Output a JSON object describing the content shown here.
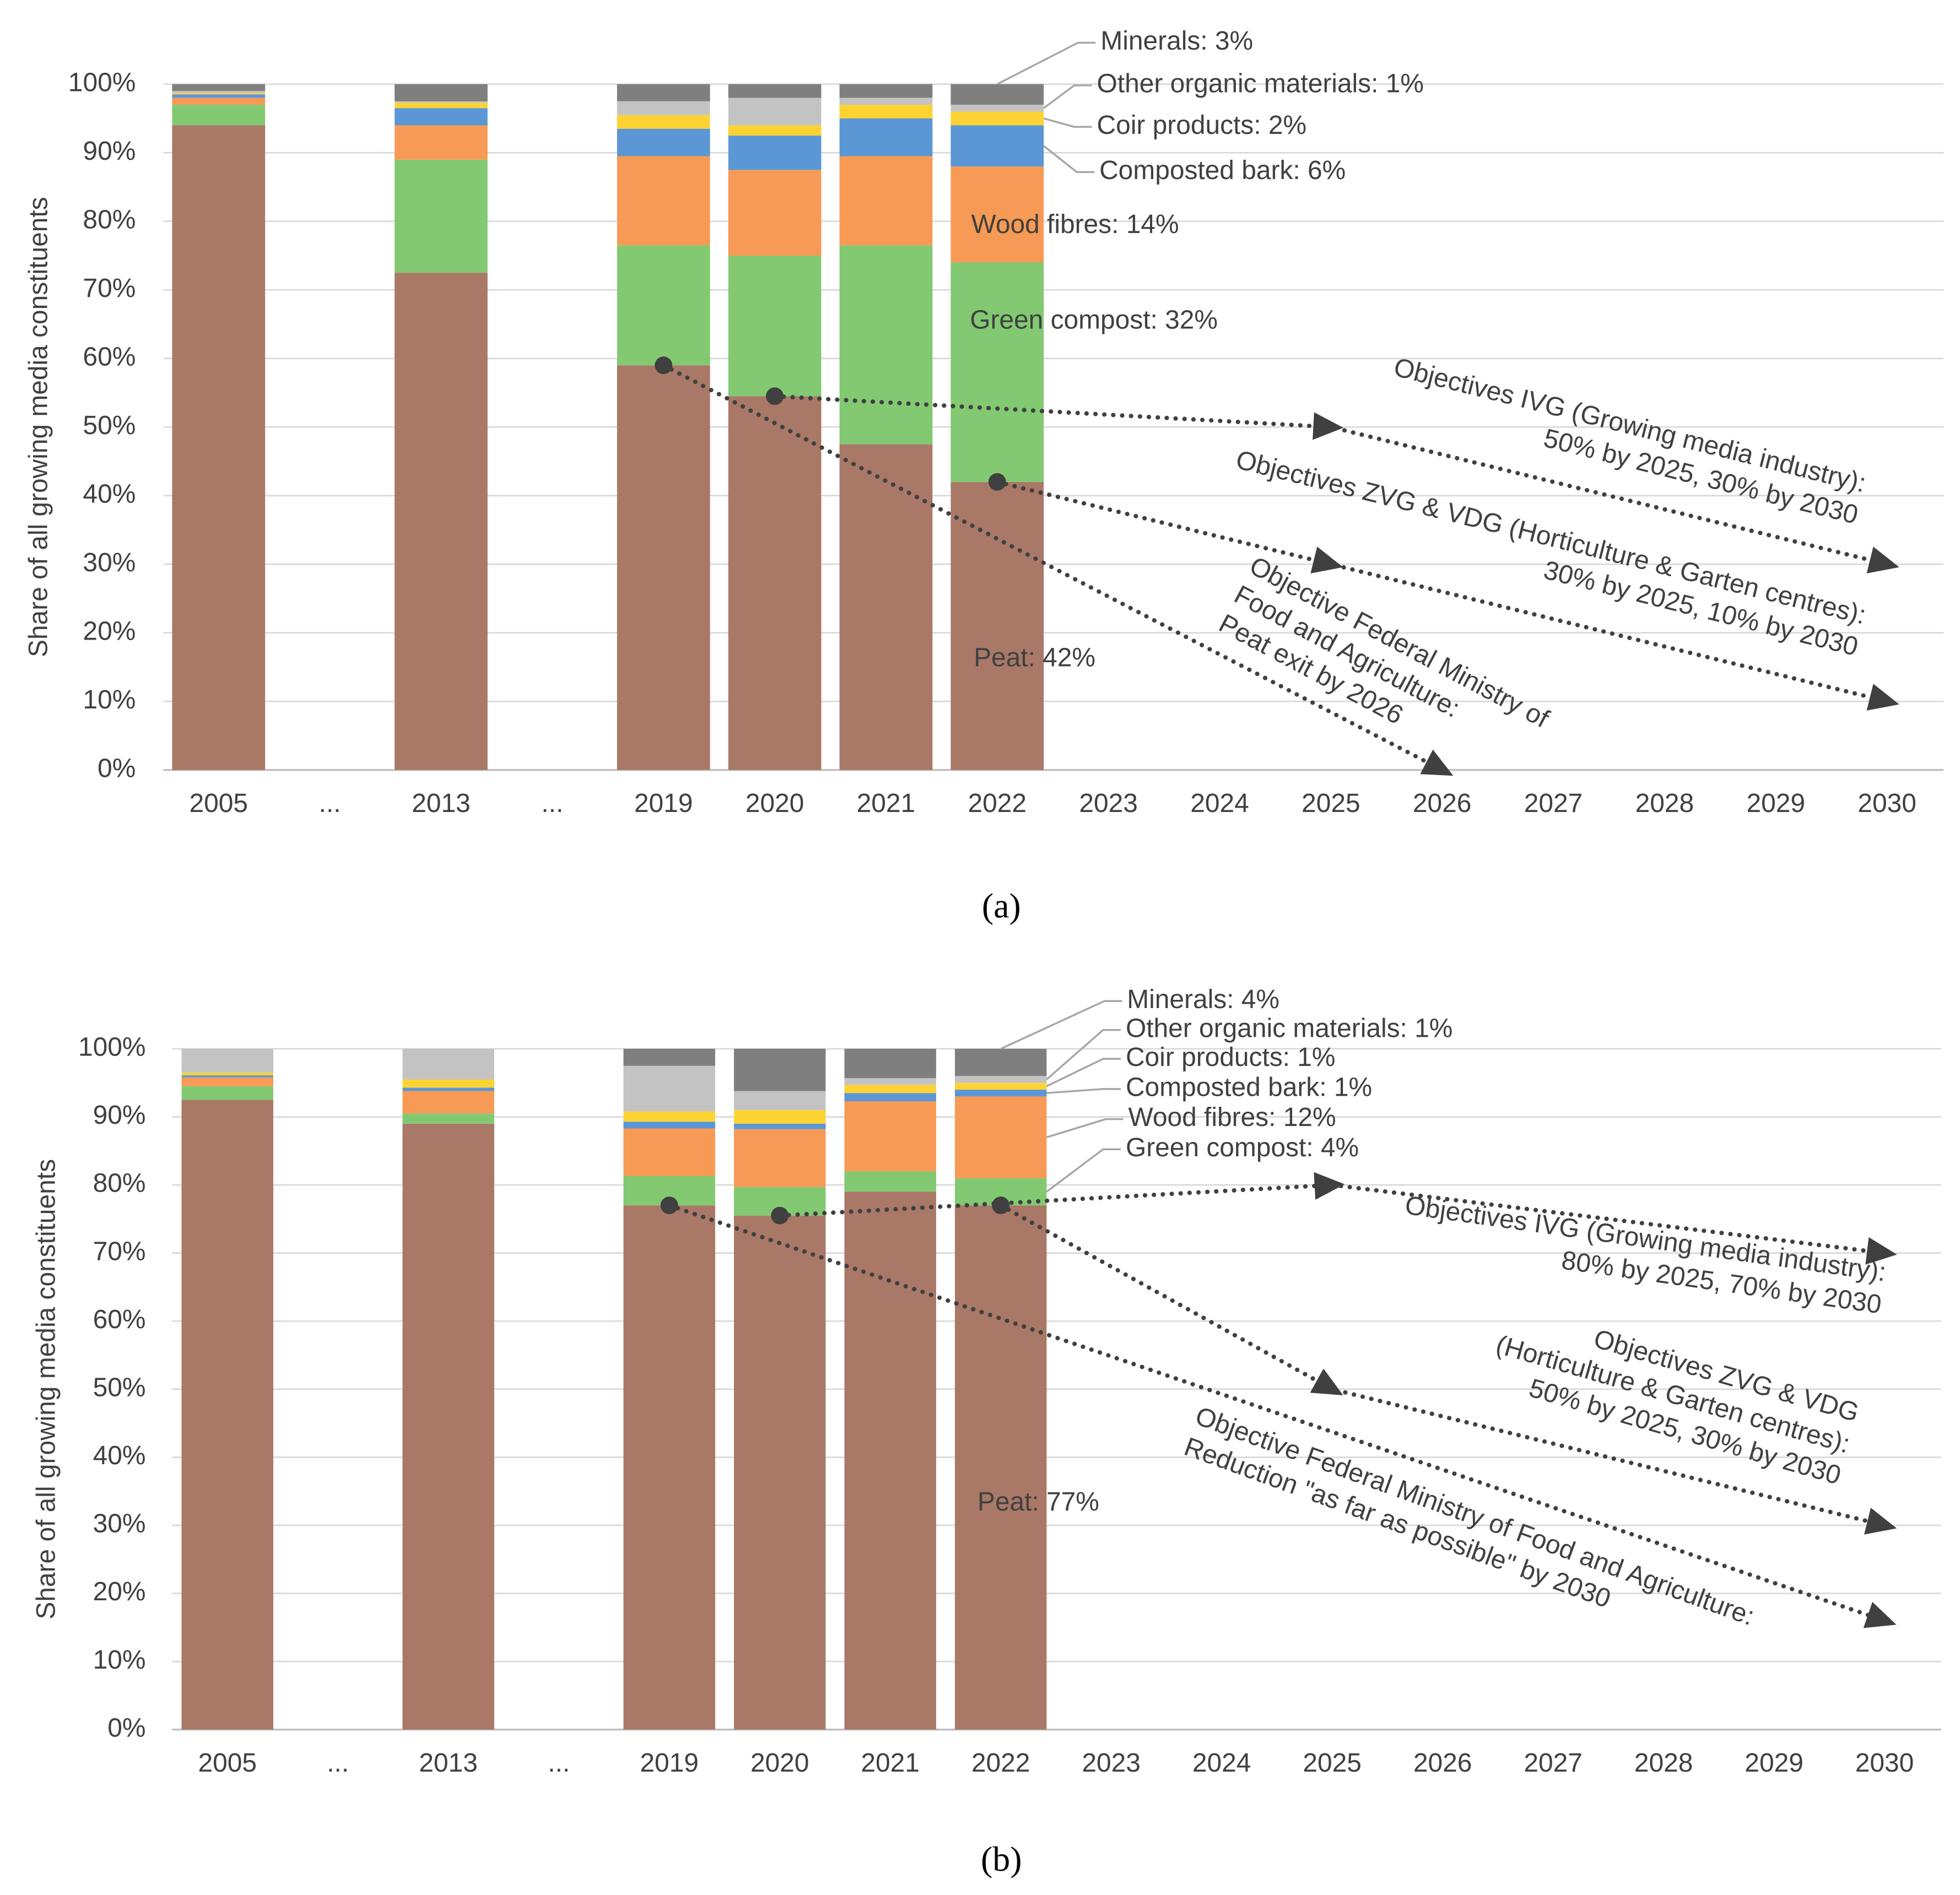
{
  "chart_data": [
    {
      "type": "bar",
      "stacked": true,
      "caption": "(a)",
      "ylabel": "Share of all growing media constituents",
      "categories": [
        "2005",
        "...",
        "2013",
        "...",
        "2019",
        "2020",
        "2021",
        "2022",
        "2023",
        "2024",
        "2025",
        "2026",
        "2027",
        "2028",
        "2029",
        "2030"
      ],
      "ylim": [
        0,
        100
      ],
      "yticks": [
        {
          "value": 0,
          "label": "0%"
        },
        {
          "value": 10,
          "label": "10%"
        },
        {
          "value": 20,
          "label": "20%"
        },
        {
          "value": 30,
          "label": "30%"
        },
        {
          "value": 40,
          "label": "40%"
        },
        {
          "value": 50,
          "label": "50%"
        },
        {
          "value": 60,
          "label": "60%"
        },
        {
          "value": 70,
          "label": "70%"
        },
        {
          "value": 80,
          "label": "80%"
        },
        {
          "value": 90,
          "label": "90%"
        },
        {
          "value": 100,
          "label": "100%"
        }
      ],
      "grid": true,
      "series": [
        {
          "name": "Peat: 42%",
          "color": "#a97867",
          "values": [
            94,
            null,
            72.5,
            null,
            59,
            54.5,
            47.5,
            42,
            null,
            null,
            null,
            null,
            null,
            null,
            null,
            null
          ]
        },
        {
          "name": "Green compost: 32%",
          "color": "#82c972",
          "values": [
            3,
            null,
            16.5,
            null,
            17.5,
            20.5,
            29,
            32,
            null,
            null,
            null,
            null,
            null,
            null,
            null,
            null
          ]
        },
        {
          "name": "Wood fibres: 14%",
          "color": "#f79a55",
          "values": [
            1,
            null,
            5,
            null,
            13,
            12.5,
            13,
            14,
            null,
            null,
            null,
            null,
            null,
            null,
            null,
            null
          ]
        },
        {
          "name": "Composted bark: 6%",
          "color": "#5b97d5",
          "values": [
            0.5,
            null,
            2.5,
            null,
            4,
            5,
            5.5,
            6,
            null,
            null,
            null,
            null,
            null,
            null,
            null,
            null
          ]
        },
        {
          "name": "Coir products: 2%",
          "color": "#fdd334",
          "values": [
            0.2,
            null,
            0.8,
            null,
            2,
            1.5,
            2,
            2,
            null,
            null,
            null,
            null,
            null,
            null,
            null,
            null
          ]
        },
        {
          "name": "Other organic materials: 1%",
          "color": "#c3c3c3",
          "values": [
            0.3,
            null,
            0.2,
            null,
            2,
            4,
            1,
            1,
            null,
            null,
            null,
            null,
            null,
            null,
            null,
            null
          ]
        },
        {
          "name": "Minerals: 3%",
          "color": "#7f7f7f",
          "values": [
            1,
            null,
            2.5,
            null,
            2.5,
            2,
            2,
            3,
            null,
            null,
            null,
            null,
            null,
            null,
            null,
            null
          ]
        }
      ],
      "objectives": [
        {
          "label": [
            "Objectives IVG (Growing media industry):",
            "50% by 2025, 30% by 2030"
          ],
          "x": [
            "2020",
            "2025",
            "2030"
          ],
          "y": [
            54.5,
            50,
            30
          ]
        },
        {
          "label": [
            "Objectives ZVG & VDG (Horticulture & Garten centres):",
            "30% by 2025, 10% by 2030"
          ],
          "x": [
            "2022",
            "2025",
            "2030"
          ],
          "y": [
            42,
            30,
            10
          ]
        },
        {
          "label": [
            "Objective Federal Ministry of",
            "Food and Agriculture:",
            "Peat exit by 2026"
          ],
          "x": [
            "2019",
            "2026"
          ],
          "y": [
            59,
            0
          ]
        }
      ]
    },
    {
      "type": "bar",
      "stacked": true,
      "caption": "(b)",
      "ylabel": "Share of all growing media constituents",
      "categories": [
        "2005",
        "...",
        "2013",
        "...",
        "2019",
        "2020",
        "2021",
        "2022",
        "2023",
        "2024",
        "2025",
        "2026",
        "2027",
        "2028",
        "2029",
        "2030"
      ],
      "ylim": [
        0,
        100
      ],
      "yticks": [
        {
          "value": 0,
          "label": "0%"
        },
        {
          "value": 10,
          "label": "10%"
        },
        {
          "value": 20,
          "label": "20%"
        },
        {
          "value": 30,
          "label": "30%"
        },
        {
          "value": 40,
          "label": "40%"
        },
        {
          "value": 50,
          "label": "50%"
        },
        {
          "value": 60,
          "label": "60%"
        },
        {
          "value": 70,
          "label": "70%"
        },
        {
          "value": 80,
          "label": "80%"
        },
        {
          "value": 90,
          "label": "90%"
        },
        {
          "value": 100,
          "label": "100%"
        }
      ],
      "grid": true,
      "series": [
        {
          "name": "Peat: 77%",
          "color": "#a97867",
          "values": [
            92.5,
            null,
            89,
            null,
            77,
            75.5,
            79,
            77,
            null,
            null,
            null,
            null,
            null,
            null,
            null,
            null
          ]
        },
        {
          "name": "Green compost: 4%",
          "color": "#82c972",
          "values": [
            2,
            null,
            1.5,
            null,
            4.3,
            4.2,
            3,
            4,
            null,
            null,
            null,
            null,
            null,
            null,
            null,
            null
          ]
        },
        {
          "name": "Wood fibres: 12%",
          "color": "#f79a55",
          "values": [
            1.3,
            null,
            3.3,
            null,
            7,
            8.5,
            10.3,
            12,
            null,
            null,
            null,
            null,
            null,
            null,
            null,
            null
          ]
        },
        {
          "name": "Composted bark: 1%",
          "color": "#5b97d5",
          "values": [
            0.3,
            null,
            0.5,
            null,
            1,
            0.8,
            1.2,
            1,
            null,
            null,
            null,
            null,
            null,
            null,
            null,
            null
          ]
        },
        {
          "name": "Coir products: 1%",
          "color": "#fdd334",
          "values": [
            0.4,
            null,
            1.2,
            null,
            1.5,
            2,
            1.2,
            1,
            null,
            null,
            null,
            null,
            null,
            null,
            null,
            null
          ]
        },
        {
          "name": "Other organic materials: 1%",
          "color": "#c3c3c3",
          "values": [
            3.5,
            null,
            4.5,
            null,
            6.7,
            2.8,
            1,
            1,
            null,
            null,
            null,
            null,
            null,
            null,
            null,
            null
          ]
        },
        {
          "name": "Minerals: 4%",
          "color": "#7f7f7f",
          "values": [
            0,
            null,
            0,
            null,
            2.5,
            6.2,
            4.3,
            4,
            null,
            null,
            null,
            null,
            null,
            null,
            null,
            null
          ]
        }
      ],
      "objectives": [
        {
          "label": [
            "Objectives IVG (Growing media industry):",
            "80% by 2025, 70% by 2030"
          ],
          "x": [
            "2020",
            "2025",
            "2030"
          ],
          "y": [
            75.5,
            80,
            70
          ]
        },
        {
          "label": [
            "Objectives ZVG & VDG",
            "(Horticulture & Garten centres):",
            "50% by 2025, 30% by 2030"
          ],
          "x": [
            "2022",
            "2025",
            "2030"
          ],
          "y": [
            77,
            50,
            30
          ]
        },
        {
          "label": [
            "Objective Federal Ministry of Food and Agriculture:",
            "Reduction \"as far as possible\" by 2030"
          ],
          "x": [
            "2019",
            "2030"
          ],
          "y": [
            77,
            16
          ]
        }
      ]
    }
  ]
}
